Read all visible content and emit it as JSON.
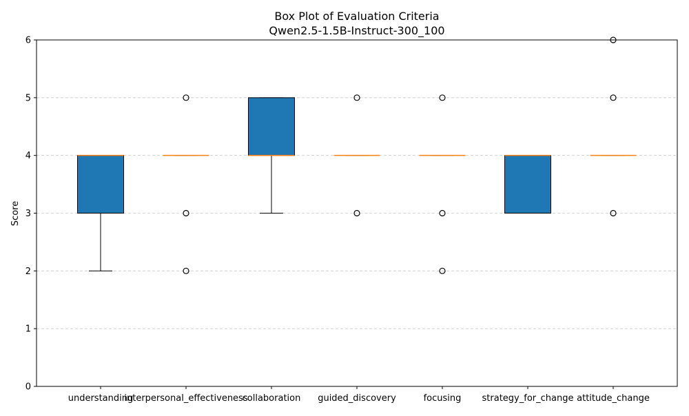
{
  "chart_data": {
    "type": "box",
    "title": "Box Plot of Evaluation Criteria",
    "subtitle": "Qwen2.5-1.5B-Instruct-300_100",
    "xlabel": "",
    "ylabel": "Score",
    "ylim": [
      0,
      6
    ],
    "yticks": [
      0,
      1,
      2,
      3,
      4,
      5,
      6
    ],
    "grid": "y-dashed",
    "categories": [
      "understanding",
      "interpersonal_effectiveness",
      "collaboration",
      "guided_discovery",
      "focusing",
      "strategy_for_change",
      "attitude_change"
    ],
    "boxes": [
      {
        "name": "understanding",
        "whislo": 2,
        "q1": 3,
        "med": 4,
        "q3": 4,
        "whishi": 4,
        "fliers": []
      },
      {
        "name": "interpersonal_effectiveness",
        "whislo": 4,
        "q1": 4,
        "med": 4,
        "q3": 4,
        "whishi": 4,
        "fliers": [
          5,
          3,
          2
        ]
      },
      {
        "name": "collaboration",
        "whislo": 3,
        "q1": 4,
        "med": 4,
        "q3": 5,
        "whishi": 5,
        "fliers": []
      },
      {
        "name": "guided_discovery",
        "whislo": 4,
        "q1": 4,
        "med": 4,
        "q3": 4,
        "whishi": 4,
        "fliers": [
          5,
          3
        ]
      },
      {
        "name": "focusing",
        "whislo": 4,
        "q1": 4,
        "med": 4,
        "q3": 4,
        "whishi": 4,
        "fliers": [
          5,
          3,
          2
        ]
      },
      {
        "name": "strategy_for_change",
        "whislo": 3,
        "q1": 3,
        "med": 4,
        "q3": 4,
        "whishi": 4,
        "fliers": []
      },
      {
        "name": "attitude_change",
        "whislo": 4,
        "q1": 4,
        "med": 4,
        "q3": 4,
        "whishi": 4,
        "fliers": [
          6,
          5,
          3
        ]
      }
    ],
    "colors": {
      "box_fill": "#1f77b4",
      "median": "#ff7f0e",
      "edge": "#000000",
      "grid": "#c7c7c7"
    }
  }
}
